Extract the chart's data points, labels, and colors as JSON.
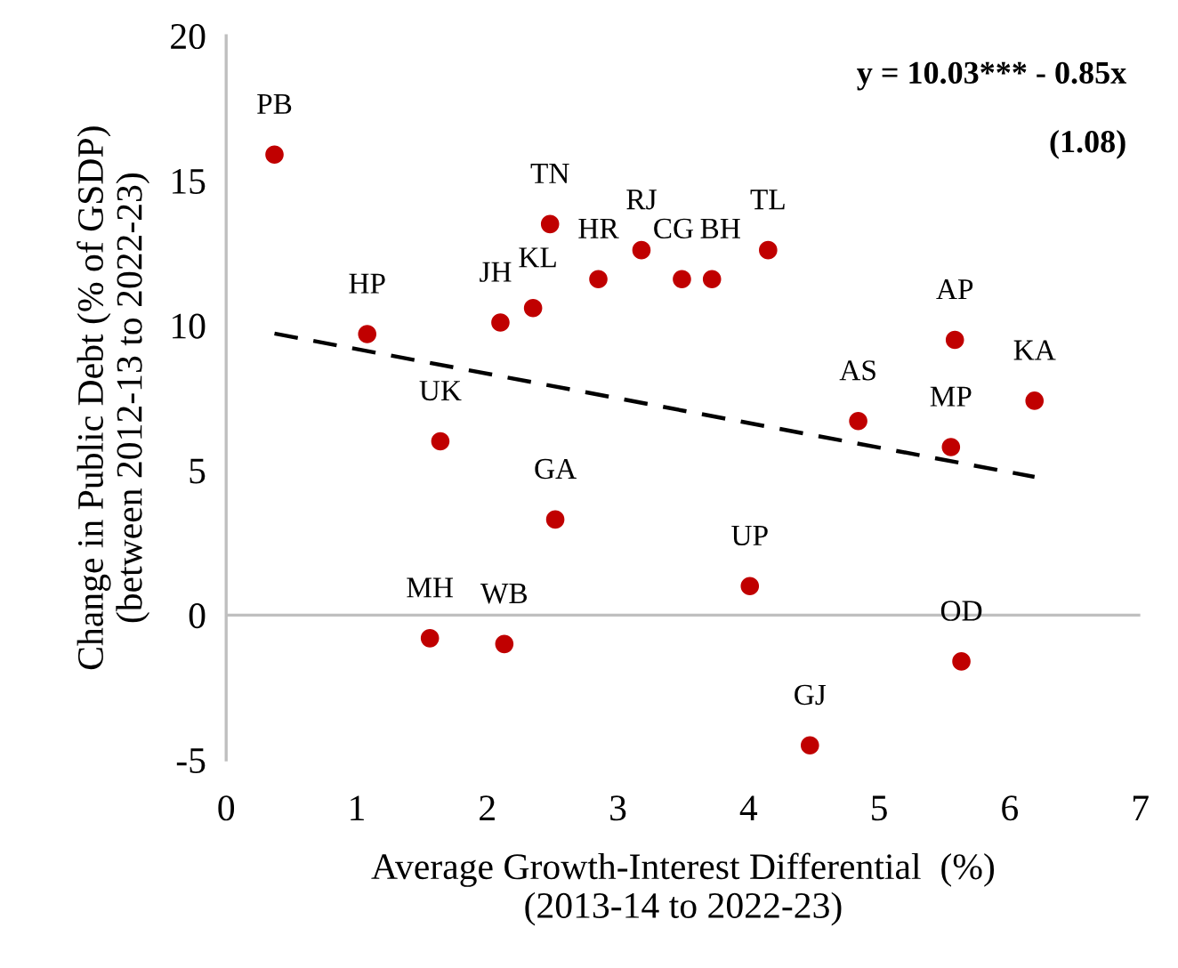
{
  "chart_data": {
    "type": "scatter",
    "xlabel": "Average Growth-Interest Differential  (%)\n(2013-14 to 2022-23)",
    "ylabel": "Change in Public Debt (% of GSDP)\n(between 2012-13 to 2022-23)",
    "xlim": [
      0,
      7
    ],
    "xticks": [
      0,
      1,
      2,
      3,
      4,
      5,
      6,
      7
    ],
    "ylim": [
      -5,
      20
    ],
    "yticks": [
      -5,
      0,
      5,
      10,
      15,
      20
    ],
    "grid": false,
    "legend": false,
    "series": [
      {
        "marker": "circle",
        "color": "#c00000",
        "x": [
          0.37,
          1.08,
          1.64,
          2.1,
          2.35,
          2.48,
          2.85,
          3.18,
          3.49,
          3.72,
          4.15,
          5.58,
          4.84,
          5.55,
          6.19,
          2.52,
          4.01,
          1.56,
          2.13,
          5.63,
          4.47
        ],
        "values": [
          15.9,
          9.7,
          6.0,
          10.1,
          10.6,
          13.5,
          11.6,
          12.6,
          11.6,
          11.6,
          12.6,
          9.5,
          6.7,
          5.8,
          7.4,
          3.3,
          1.0,
          -0.8,
          -1.0,
          -1.6,
          -4.5
        ]
      },
      {
        "type": "line",
        "color": "#000000",
        "line_style": "dashed",
        "x": [
          0.37,
          6.19
        ],
        "values": [
          9.72,
          4.77
        ]
      }
    ],
    "ref_lines": [
      {
        "axis": "y",
        "value": 0,
        "color": "#bfbfbf",
        "line_style": "solid"
      }
    ],
    "annotations": [
      "y = 10.03*** - 0.85x",
      "(1.08)",
      {
        "text": "PB",
        "x": 0.37,
        "y": 15.9
      },
      {
        "text": "HP",
        "x": 1.08,
        "y": 9.7
      },
      {
        "text": "UK",
        "x": 1.64,
        "y": 6.0
      },
      {
        "text": "JH",
        "x": 2.1,
        "y": 10.1
      },
      {
        "text": "KL",
        "x": 2.35,
        "y": 10.6
      },
      {
        "text": "TN",
        "x": 2.48,
        "y": 13.5
      },
      {
        "text": "HR",
        "x": 2.85,
        "y": 11.6
      },
      {
        "text": "RJ",
        "x": 3.18,
        "y": 12.6
      },
      {
        "text": "CG",
        "x": 3.49,
        "y": 11.6
      },
      {
        "text": "BH",
        "x": 3.72,
        "y": 11.6
      },
      {
        "text": "TL",
        "x": 4.15,
        "y": 12.6
      },
      {
        "text": "AP",
        "x": 5.58,
        "y": 9.5
      },
      {
        "text": "AS",
        "x": 4.84,
        "y": 6.7
      },
      {
        "text": "MP",
        "x": 5.55,
        "y": 5.8
      },
      {
        "text": "KA",
        "x": 6.19,
        "y": 7.4
      },
      {
        "text": "GA",
        "x": 2.52,
        "y": 3.3
      },
      {
        "text": "UP",
        "x": 4.01,
        "y": 1.0
      },
      {
        "text": "MH",
        "x": 1.56,
        "y": -0.8
      },
      {
        "text": "WB",
        "x": 2.13,
        "y": -1.0
      },
      {
        "text": "OD",
        "x": 5.63,
        "y": -1.6
      },
      {
        "text": "GJ",
        "x": 4.47,
        "y": -4.5
      }
    ]
  }
}
